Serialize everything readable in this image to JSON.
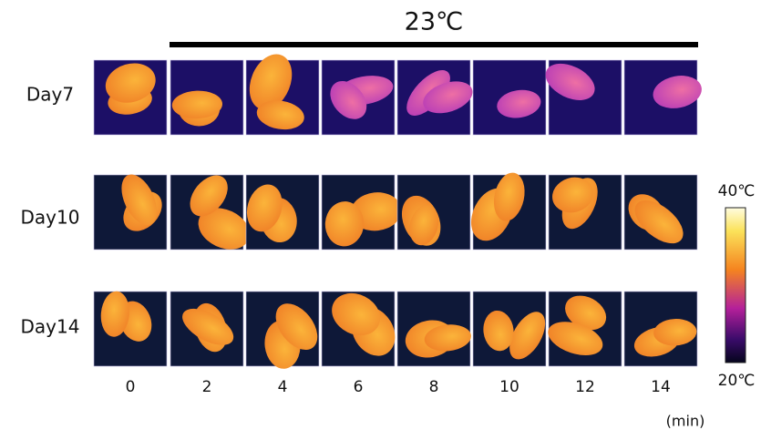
{
  "title": "23℃",
  "rows": [
    "Day7",
    "Day10",
    "Day14"
  ],
  "times": [
    0,
    2,
    4,
    6,
    8,
    10,
    12,
    14
  ],
  "time_unit": "(min)",
  "colorbar": {
    "max_label": "40℃",
    "min_label": "20℃"
  }
}
